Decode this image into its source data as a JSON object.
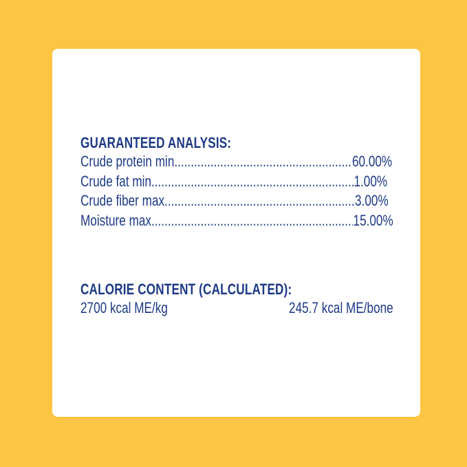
{
  "colors": {
    "background": "#fdc544",
    "card": "#ffffff",
    "text": "#1d3a85"
  },
  "guaranteed_analysis": {
    "title": "GUARANTEED ANALYSIS:",
    "rows": [
      {
        "label": "Crude protein min",
        "value": "60.00%"
      },
      {
        "label": "Crude fat min",
        "value": "1.00%"
      },
      {
        "label": "Crude fiber max",
        "value": "3.00%"
      },
      {
        "label": "Moisture max",
        "value": "15.00%"
      }
    ]
  },
  "calorie_content": {
    "title": "CALORIE CONTENT (CALCULATED):",
    "per_kg": "2700 kcal ME/kg",
    "per_bone": "245.7 kcal ME/bone"
  }
}
